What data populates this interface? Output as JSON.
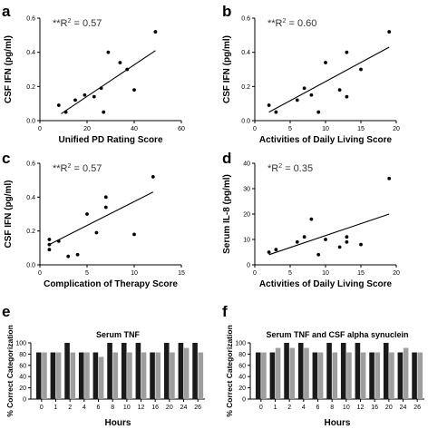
{
  "colors": {
    "axis": "#000000",
    "point": "#000000",
    "bar_dark": "#1a1a1a",
    "bar_light": "#9e9e9e"
  },
  "chart_data": [
    {
      "panel": "a",
      "type": "scatter",
      "annotation_prefix": "**R",
      "annotation_sup": "2",
      "annotation_value": " = 0.57",
      "xlabel": "Unified PD Rating Score",
      "ylabel": "CSF IFN (pg/ml)",
      "xlim": [
        0,
        60
      ],
      "ylim": [
        0.0,
        0.6
      ],
      "xticks": [
        "0",
        "20",
        "40",
        "60"
      ],
      "yticks": [
        "0.0",
        "0.2",
        "0.4",
        "0.6"
      ],
      "points": [
        {
          "x": 8,
          "y": 0.09
        },
        {
          "x": 11,
          "y": 0.05
        },
        {
          "x": 15,
          "y": 0.12
        },
        {
          "x": 19,
          "y": 0.15
        },
        {
          "x": 23,
          "y": 0.14
        },
        {
          "x": 26,
          "y": 0.19
        },
        {
          "x": 27,
          "y": 0.05
        },
        {
          "x": 29,
          "y": 0.4
        },
        {
          "x": 34,
          "y": 0.34
        },
        {
          "x": 37,
          "y": 0.3
        },
        {
          "x": 40,
          "y": 0.18
        },
        {
          "x": 49,
          "y": 0.52
        }
      ],
      "fit": [
        {
          "x": 9,
          "y": 0.04
        },
        {
          "x": 49,
          "y": 0.41
        }
      ]
    },
    {
      "panel": "b",
      "type": "scatter",
      "annotation_prefix": "**R",
      "annotation_sup": "2",
      "annotation_value": " = 0.60",
      "xlabel": "Activities of Daily Living Score",
      "ylabel": "CSF IFN (pg/ml)",
      "xlim": [
        0,
        20
      ],
      "ylim": [
        0.0,
        0.6
      ],
      "xticks": [
        "0",
        "5",
        "10",
        "15",
        "20"
      ],
      "yticks": [
        "0.0",
        "0.2",
        "0.4",
        "0.6"
      ],
      "points": [
        {
          "x": 2,
          "y": 0.09
        },
        {
          "x": 3,
          "y": 0.05
        },
        {
          "x": 6,
          "y": 0.12
        },
        {
          "x": 7,
          "y": 0.19
        },
        {
          "x": 8,
          "y": 0.15
        },
        {
          "x": 9,
          "y": 0.05
        },
        {
          "x": 10,
          "y": 0.34
        },
        {
          "x": 12,
          "y": 0.18
        },
        {
          "x": 13,
          "y": 0.4
        },
        {
          "x": 13,
          "y": 0.14
        },
        {
          "x": 15,
          "y": 0.3
        },
        {
          "x": 19,
          "y": 0.52
        }
      ],
      "fit": [
        {
          "x": 2,
          "y": 0.05
        },
        {
          "x": 19,
          "y": 0.43
        }
      ]
    },
    {
      "panel": "c",
      "type": "scatter",
      "annotation_prefix": "**R",
      "annotation_sup": "2",
      "annotation_value": " = 0.57",
      "xlabel": "Complication of Therapy Score",
      "ylabel": "CSF IFN (pg/ml)",
      "xlim": [
        0,
        15
      ],
      "ylim": [
        0.0,
        0.6
      ],
      "xticks": [
        "0",
        "5",
        "10",
        "15"
      ],
      "yticks": [
        "0.0",
        "0.2",
        "0.4",
        "0.6"
      ],
      "points": [
        {
          "x": 1,
          "y": 0.15
        },
        {
          "x": 1,
          "y": 0.12
        },
        {
          "x": 1,
          "y": 0.09
        },
        {
          "x": 2,
          "y": 0.14
        },
        {
          "x": 3,
          "y": 0.05
        },
        {
          "x": 4,
          "y": 0.06
        },
        {
          "x": 5,
          "y": 0.3
        },
        {
          "x": 6,
          "y": 0.19
        },
        {
          "x": 7,
          "y": 0.4
        },
        {
          "x": 7,
          "y": 0.34
        },
        {
          "x": 10,
          "y": 0.18
        },
        {
          "x": 12,
          "y": 0.52
        }
      ],
      "fit": [
        {
          "x": 1,
          "y": 0.12
        },
        {
          "x": 12,
          "y": 0.43
        }
      ]
    },
    {
      "panel": "d",
      "type": "scatter",
      "annotation_prefix": "*R",
      "annotation_sup": "2",
      "annotation_value": " = 0.35",
      "xlabel": "Activities of Daily Living Score",
      "ylabel": "Serum IL-8 (pg/ml)",
      "xlim": [
        0,
        20
      ],
      "ylim": [
        0,
        40
      ],
      "xticks": [
        "0",
        "5",
        "10",
        "15",
        "20"
      ],
      "yticks": [
        "0",
        "10",
        "20",
        "30",
        "40"
      ],
      "points": [
        {
          "x": 2,
          "y": 5
        },
        {
          "x": 3,
          "y": 6
        },
        {
          "x": 6,
          "y": 9
        },
        {
          "x": 7,
          "y": 11
        },
        {
          "x": 8,
          "y": 18
        },
        {
          "x": 9,
          "y": 4
        },
        {
          "x": 10,
          "y": 10
        },
        {
          "x": 12,
          "y": 7
        },
        {
          "x": 13,
          "y": 11
        },
        {
          "x": 13,
          "y": 9
        },
        {
          "x": 15,
          "y": 8
        },
        {
          "x": 19,
          "y": 34
        }
      ],
      "fit": [
        {
          "x": 2,
          "y": 4
        },
        {
          "x": 19,
          "y": 20
        }
      ]
    },
    {
      "panel": "e",
      "type": "bar",
      "title": "Serum TNF",
      "xlabel": "Hours",
      "ylabel": "% Correct Categorization",
      "ylim": [
        0,
        100
      ],
      "yticks": [
        "0",
        "20",
        "40",
        "60",
        "80",
        "100"
      ],
      "categories": [
        "0",
        "1",
        "2",
        "4",
        "6",
        "8",
        "10",
        "12",
        "16",
        "20",
        "24",
        "26"
      ],
      "series": [
        {
          "values": [
            83,
            83,
            100,
            83,
            83,
            100,
            100,
            100,
            83,
            100,
            100,
            100
          ]
        },
        {
          "values": [
            83,
            83,
            83,
            83,
            75,
            83,
            83,
            83,
            83,
            83,
            91,
            83
          ]
        }
      ]
    },
    {
      "panel": "f",
      "type": "bar",
      "title": "Serum TNF and CSF alpha synuclein",
      "xlabel": "Hours",
      "ylabel": "% Correct Categorization",
      "ylim": [
        0,
        100
      ],
      "yticks": [
        "0",
        "20",
        "40",
        "60",
        "80",
        "100"
      ],
      "categories": [
        "0",
        "1",
        "2",
        "4",
        "6",
        "8",
        "10",
        "12",
        "16",
        "20",
        "24",
        "26"
      ],
      "series": [
        {
          "values": [
            83,
            83,
            100,
            100,
            83,
            100,
            100,
            100,
            83,
            100,
            83,
            83
          ]
        },
        {
          "values": [
            83,
            91,
            91,
            91,
            83,
            83,
            83,
            83,
            83,
            83,
            91,
            83
          ]
        }
      ]
    }
  ]
}
